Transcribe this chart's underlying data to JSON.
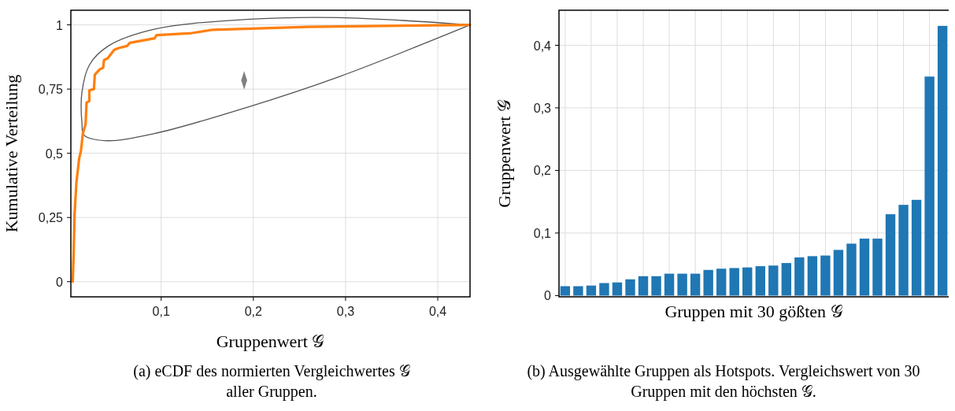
{
  "chart_data": [
    {
      "type": "line",
      "xlabel": "Gruppenwert 𝒢",
      "ylabel": "Kumulative Verteilung",
      "xlim": [
        0.002,
        0.435
      ],
      "ylim": [
        -0.059,
        1.057
      ],
      "xticks": [
        {
          "value": 0.1,
          "label": "0,1"
        },
        {
          "value": 0.2,
          "label": "0,2"
        },
        {
          "value": 0.3,
          "label": "0,3"
        },
        {
          "value": 0.4,
          "label": "0,4"
        }
      ],
      "yticks": [
        {
          "value": 0,
          "label": "0"
        },
        {
          "value": 0.25,
          "label": "0,25"
        },
        {
          "value": 0.5,
          "label": "0,5"
        },
        {
          "value": 0.75,
          "label": "0,75"
        },
        {
          "value": 1,
          "label": "1"
        }
      ],
      "grid": true,
      "series": [
        {
          "type": "line",
          "color": "#ff7f0e",
          "x": [
            0.004,
            0.005,
            0.006,
            0.008,
            0.011,
            0.013,
            0.015,
            0.018,
            0.019,
            0.022,
            0.022,
            0.027,
            0.028,
            0.033,
            0.037,
            0.038,
            0.042,
            0.049,
            0.054,
            0.063,
            0.066,
            0.093,
            0.095,
            0.133,
            0.156,
            0.259,
            0.435
          ],
          "values": [
            0,
            0.1,
            0.26,
            0.385,
            0.48,
            0.51,
            0.577,
            0.613,
            0.697,
            0.703,
            0.745,
            0.75,
            0.806,
            0.826,
            0.833,
            0.863,
            0.87,
            0.903,
            0.91,
            0.918,
            0.93,
            0.948,
            0.96,
            0.968,
            0.981,
            0.992,
            1
          ]
        },
        {
          "type": "scatter",
          "color": "#808080",
          "marker": "diamond",
          "x": [
            0.19
          ],
          "values": [
            0.784
          ]
        }
      ],
      "annotations": [
        "(a) eCDF des normierten Vergleichwertes 𝒢 aller Gruppen."
      ]
    },
    {
      "type": "bar",
      "xlabel": "Gruppen mit 30 gößten 𝒢",
      "ylabel": "Gruppenwert 𝒢",
      "ylim": [
        -0.002,
        0.456
      ],
      "yticks": [
        {
          "value": 0,
          "label": "0"
        },
        {
          "value": 0.1,
          "label": "0,1"
        },
        {
          "value": 0.2,
          "label": "0,2"
        },
        {
          "value": 0.3,
          "label": "0,3"
        },
        {
          "value": 0.4,
          "label": "0,4"
        }
      ],
      "grid": true,
      "color": "#1f77b4",
      "categories": [
        null,
        null,
        null,
        null,
        null,
        null,
        null,
        null,
        null,
        null,
        null,
        null,
        null,
        null,
        null,
        null,
        null,
        null,
        null,
        null,
        null,
        null,
        null,
        null,
        null,
        null,
        null,
        null,
        null,
        null
      ],
      "values": [
        0.015,
        0.015,
        0.016,
        0.02,
        0.021,
        0.026,
        0.031,
        0.031,
        0.035,
        0.035,
        0.035,
        0.041,
        0.043,
        0.044,
        0.045,
        0.047,
        0.048,
        0.052,
        0.061,
        0.063,
        0.064,
        0.073,
        0.083,
        0.091,
        0.091,
        0.13,
        0.145,
        0.153,
        0.35,
        0.431
      ],
      "annotations": [
        "(b) Ausgewählte Gruppen als Hotspots. Vergleichswert von 30 Gruppen mit den höchsten 𝒢."
      ]
    }
  ]
}
